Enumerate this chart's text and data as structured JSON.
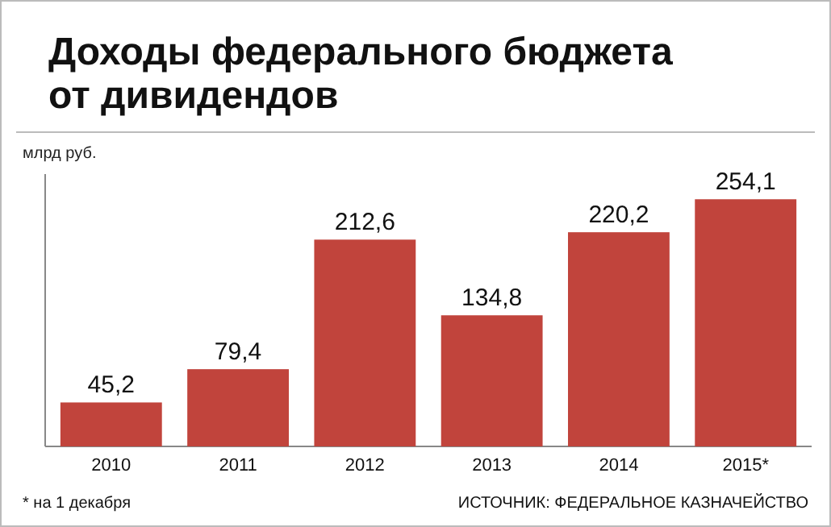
{
  "chart_data": {
    "type": "bar",
    "title": "Доходы федерального бюджета\nот дивидендов",
    "ylabel": "млрд руб.",
    "categories": [
      "2010",
      "2011",
      "2012",
      "2013",
      "2014",
      "2015*"
    ],
    "values": [
      45.2,
      79.4,
      212.6,
      134.8,
      220.2,
      254.1
    ],
    "value_labels": [
      "45,2",
      "79,4",
      "212,6",
      "134,8",
      "220,2",
      "254,1"
    ],
    "color": "#c1443c",
    "ylim": [
      0,
      280
    ],
    "tick_labels": "x",
    "grid": false,
    "annotations": [
      "* на 1 декабря",
      "ИСТОЧНИК: ФЕДЕРАЛЬНОЕ КАЗНАЧЕЙСТВО"
    ]
  }
}
